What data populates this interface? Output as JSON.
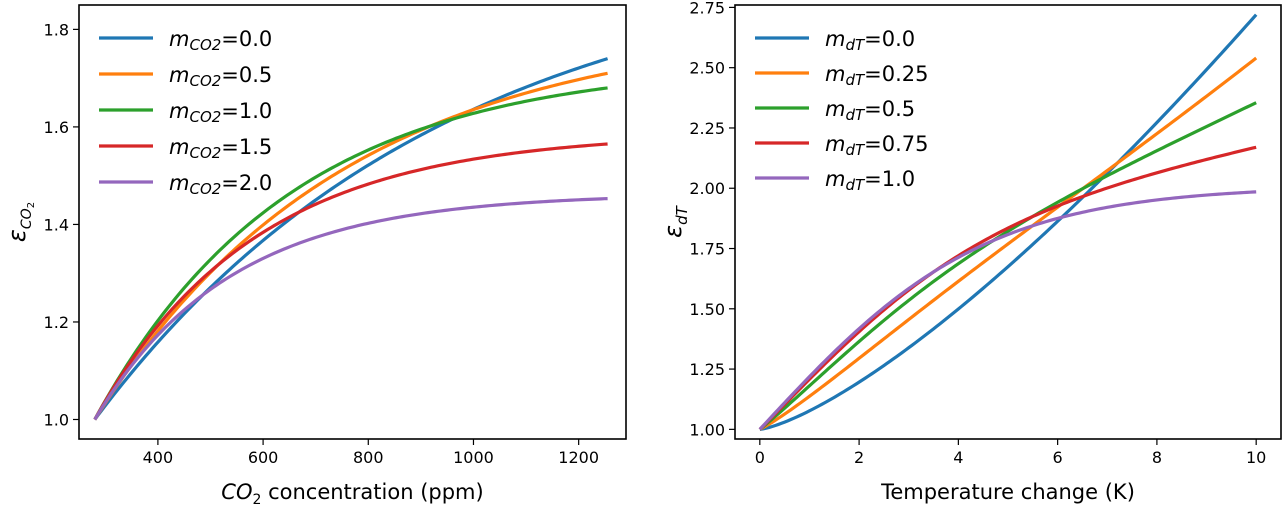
{
  "chart_data": [
    {
      "type": "line",
      "xlabel_main": "CO",
      "xlabel_sub": "2",
      "xlabel_rest": " concentration (ppm)",
      "ylabel_main": "ε",
      "ylabel_sub": "CO",
      "ylabel_subsub": "2",
      "xlim": [
        250,
        1290
      ],
      "ylim": [
        0.96,
        1.85
      ],
      "xticks": [
        400,
        600,
        800,
        1000,
        1200
      ],
      "xtick_labels": [
        "400",
        "600",
        "800",
        "1000",
        "1200"
      ],
      "yticks": [
        1.0,
        1.2,
        1.4,
        1.6,
        1.8
      ],
      "ytick_labels": [
        "1.0",
        "1.2",
        "1.4",
        "1.6",
        "1.8"
      ],
      "x_range": [
        280,
        1255
      ],
      "legend": "top-left",
      "grid": false,
      "series": [
        {
          "name": "m",
          "sub": "CO2",
          "value": "=0.0",
          "m": 0.0,
          "color": "#1f77b4",
          "end_value": 1.74
        },
        {
          "name": "m",
          "sub": "CO2",
          "value": "=0.5",
          "m": 0.5,
          "color": "#ff7f0e",
          "end_value": 1.71
        },
        {
          "name": "m",
          "sub": "CO2",
          "value": "=1.0",
          "m": 1.0,
          "color": "#2ca02c",
          "end_value": 1.68
        },
        {
          "name": "m",
          "sub": "CO2",
          "value": "=1.5",
          "m": 1.5,
          "color": "#d62728",
          "end_value": 1.565
        },
        {
          "name": "m",
          "sub": "CO2",
          "value": "=2.0",
          "m": 2.0,
          "color": "#9467bd",
          "end_value": 1.453
        }
      ]
    },
    {
      "type": "line",
      "xlabel": "Temperature change (K)",
      "ylabel_main": "ε",
      "ylabel_sub": "dT",
      "xlim": [
        -0.5,
        10.5
      ],
      "ylim": [
        0.96,
        2.76
      ],
      "xticks": [
        0,
        2,
        4,
        6,
        8,
        10
      ],
      "xtick_labels": [
        "0",
        "2",
        "4",
        "6",
        "8",
        "10"
      ],
      "yticks": [
        1.0,
        1.25,
        1.5,
        1.75,
        2.0,
        2.25,
        2.5,
        2.75
      ],
      "ytick_labels": [
        "1.00",
        "1.25",
        "1.50",
        "1.75",
        "2.00",
        "2.25",
        "2.50",
        "2.75"
      ],
      "x_range": [
        0,
        10
      ],
      "legend": "top-left",
      "grid": false,
      "series": [
        {
          "name": "m",
          "sub": "dT",
          "value": "=0.0",
          "m": 0.0,
          "color": "#1f77b4",
          "end_value": 2.72
        },
        {
          "name": "m",
          "sub": "dT",
          "value": "=0.25",
          "m": 0.25,
          "color": "#ff7f0e",
          "end_value": 2.54
        },
        {
          "name": "m",
          "sub": "dT",
          "value": "=0.5",
          "m": 0.5,
          "color": "#2ca02c",
          "end_value": 2.355
        },
        {
          "name": "m",
          "sub": "dT",
          "value": "=0.75",
          "m": 0.75,
          "color": "#d62728",
          "end_value": 2.17
        },
        {
          "name": "m",
          "sub": "dT",
          "value": "=1.0",
          "m": 1.0,
          "color": "#9467bd",
          "end_value": 1.985
        }
      ]
    }
  ]
}
